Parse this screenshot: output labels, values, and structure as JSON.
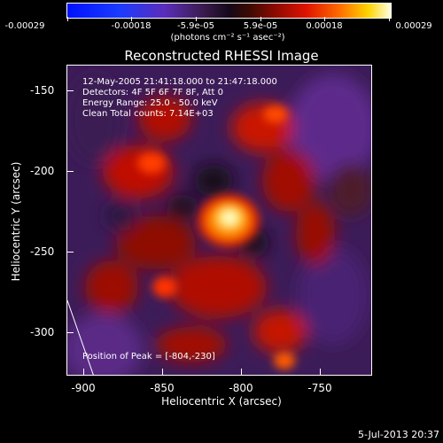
{
  "colorbar": {
    "tick_labels": [
      "-0.00029",
      "-0.00018",
      "-5.9e-05",
      "5.9e-05",
      "0.00018",
      "0.00029"
    ],
    "units_label": "(photons cm⁻² s⁻¹ asec⁻²)",
    "min_value": -0.00029,
    "max_value": 0.00029
  },
  "plot": {
    "title": "Reconstructed RHESSI Image",
    "xlabel": "Heliocentric X (arcsec)",
    "ylabel": "Heliocentric Y (arcsec)",
    "x_ticks": [
      "-900",
      "-850",
      "-800",
      "-750"
    ],
    "y_ticks": [
      "-150",
      "-200",
      "-250",
      "-300"
    ],
    "xlim": [
      -910,
      -717
    ],
    "ylim": [
      -325,
      -130
    ],
    "info_lines": [
      "12-May-2005 21:41:18.000 to 21:47:18.000",
      "Detectors: 4F 5F 6F 7F 8F, Att 0",
      "Energy Range: 25.0 - 50.0 keV",
      "Clean    Total counts: 7.14E+03"
    ],
    "peak_label": "Position of Peak = [-804,-230]"
  },
  "footer": {
    "timestamp": "5-Jul-2013 20:37"
  },
  "colors": {
    "background": "#000000",
    "foreground": "#ffffff",
    "colormap_low": "#0011ff",
    "colormap_mid": "#15081a",
    "colormap_high": "#ffffe0"
  }
}
